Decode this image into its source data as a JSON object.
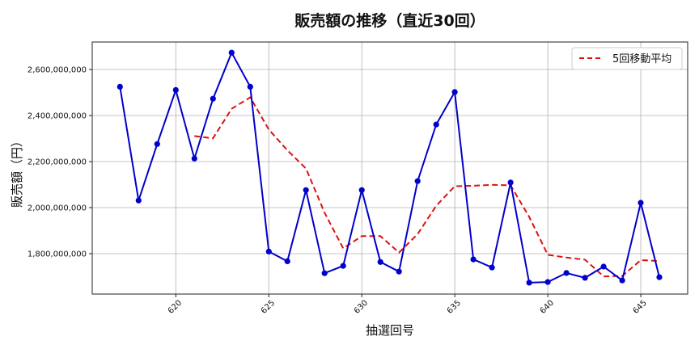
{
  "chart_data": {
    "type": "line",
    "title": "販売額の推移（直近30回）",
    "xlabel": "抽選回号",
    "ylabel": "販売額（円）",
    "x": [
      617,
      618,
      619,
      620,
      621,
      622,
      623,
      624,
      625,
      626,
      627,
      628,
      629,
      630,
      631,
      632,
      633,
      634,
      635,
      636,
      637,
      638,
      639,
      640,
      641,
      642,
      643,
      644,
      645,
      646
    ],
    "series": [
      {
        "name": "販売額",
        "color": "#0000CC",
        "style": "solid-with-markers",
        "values": [
          2525000000,
          2031000000,
          2276000000,
          2511000000,
          2213000000,
          2473000000,
          2673000000,
          2525000000,
          1809000000,
          1767000000,
          2076000000,
          1715000000,
          1747000000,
          2076000000,
          1764000000,
          1722000000,
          2115000000,
          2361000000,
          2502000000,
          1775000000,
          1740000000,
          2109000000,
          1674000000,
          1677000000,
          1716000000,
          1695000000,
          1744000000,
          1684000000,
          2021000000,
          1698000000
        ]
      },
      {
        "name": "5回移動平均",
        "color": "#DD1111",
        "style": "dashed",
        "values": [
          null,
          null,
          null,
          null,
          2311000000,
          2301000000,
          2429000000,
          2479000000,
          2339000000,
          2249000000,
          2170000000,
          1978000000,
          1823000000,
          1876000000,
          1876000000,
          1805000000,
          1885000000,
          2008000000,
          2093000000,
          2095000000,
          2099000000,
          2097000000,
          1960000000,
          1795000000,
          1783000000,
          1774000000,
          1701000000,
          1703000000,
          1772000000,
          1768000000
        ]
      }
    ],
    "x_ticks": [
      620,
      625,
      630,
      635,
      640,
      645
    ],
    "y_ticks": [
      1800000000,
      2000000000,
      2200000000,
      2400000000,
      2600000000
    ],
    "y_tick_labels": [
      "1,800,000,000",
      "2,000,000,000",
      "2,200,000,000",
      "2,400,000,000",
      "2,600,000,000"
    ],
    "xlim": [
      615.6,
      647.6
    ],
    "ylim": [
      1610000000,
      2730000000
    ],
    "grid": true,
    "legend": {
      "position": "upper right",
      "entries": [
        "5回移動平均"
      ]
    }
  }
}
